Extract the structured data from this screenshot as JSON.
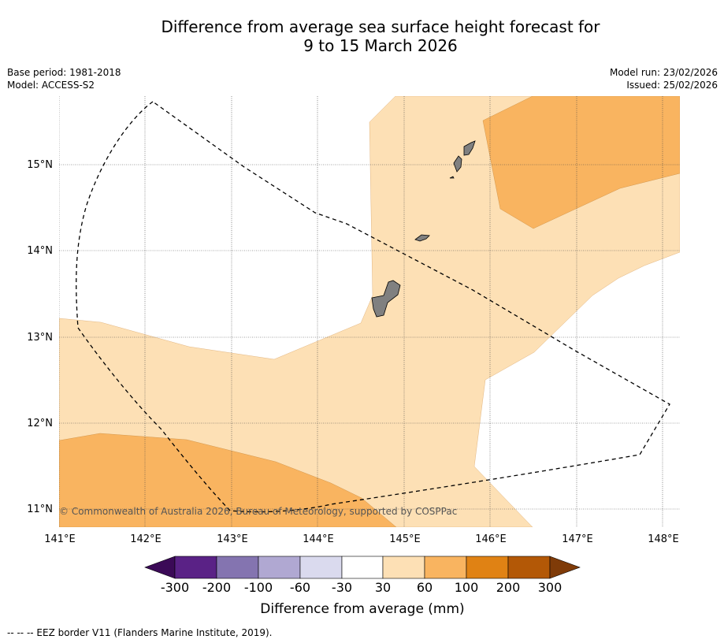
{
  "title": {
    "line1": "Difference from average sea surface height forecast for",
    "line2": "9 to 15 March 2026"
  },
  "meta_left": {
    "base_period": "Base period: 1981-2018",
    "model": "Model: ACCESS-S2"
  },
  "meta_right": {
    "model_run": "Model run: 23/02/2026",
    "issued": "Issued: 25/02/2026"
  },
  "map": {
    "lon_labels": [
      "141°E",
      "142°E",
      "143°E",
      "144°E",
      "145°E",
      "146°E",
      "147°E",
      "148°E"
    ],
    "lat_labels": [
      "15°N",
      "14°N",
      "13°N",
      "12°N",
      "11°N"
    ],
    "copyright": "© Commonwealth of Australia 2026, Bureau of Meteorology, supported by COSPPac",
    "colors": {
      "band_30_60": "#fde0b5",
      "band_60_100": "#f9b460",
      "land": "#808080"
    }
  },
  "colorbar": {
    "ticks": [
      "-300",
      "-200",
      "-100",
      "-60",
      "-30",
      "30",
      "60",
      "100",
      "200",
      "300"
    ],
    "colors": [
      "#3b0a57",
      "#5a2286",
      "#8474b0",
      "#b0a8d2",
      "#dadaee",
      "#ffffff",
      "#fde0b5",
      "#f9b460",
      "#e08214",
      "#b35806",
      "#7f3b08"
    ],
    "label": "Difference from average (mm)"
  },
  "footer": {
    "legend": "--  --  -- EEZ border V11 (Flanders Marine Institute, 2019)."
  }
}
